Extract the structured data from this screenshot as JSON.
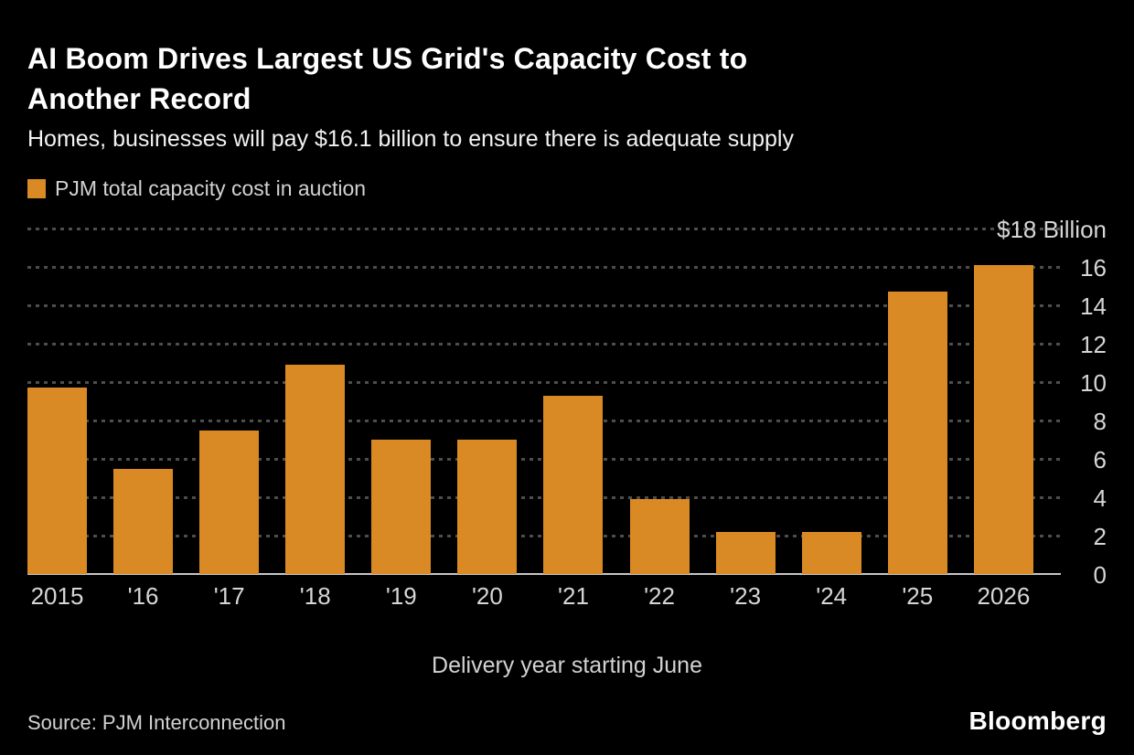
{
  "header": {
    "title_line1": "AI Boom Drives Largest US Grid's Capacity Cost to",
    "title_line2": "Another Record",
    "subtitle": "Homes, businesses will pay $16.1 billion to ensure there is adequate supply"
  },
  "legend": {
    "label": "PJM total capacity cost in auction",
    "swatch_color": "#D98A24"
  },
  "chart_data": {
    "type": "bar",
    "title": "AI Boom Drives Largest US Grid's Capacity Cost to Another Record",
    "subtitle": "Homes, businesses will pay $16.1 billion to ensure there is adequate supply",
    "legend": "PJM total capacity cost in auction",
    "legend_position": "top-left",
    "categories": [
      "2015",
      "'16",
      "'17",
      "'18",
      "'19",
      "'20",
      "'21",
      "'22",
      "'23",
      "'24",
      "'25",
      "2026"
    ],
    "values": [
      9.7,
      5.5,
      7.5,
      10.9,
      7.0,
      7.0,
      9.3,
      3.9,
      2.2,
      2.2,
      14.7,
      16.1
    ],
    "xlabel": "Delivery year starting June",
    "ylabel_unit": "$18 Billion",
    "ylim": [
      0,
      18
    ],
    "ytick_step": 2,
    "ytick_labels": [
      "16",
      "14",
      "12",
      "10",
      "8",
      "6",
      "4",
      "2",
      "0"
    ],
    "yaxis_position": "right",
    "grid": "horizontal-dotted",
    "bar_color": "#D98A24"
  },
  "footer": {
    "source": "Source: PJM Interconnection",
    "brand": "Bloomberg"
  },
  "colors": {
    "background": "#000000",
    "title_text": "#FFFFFF",
    "muted_text": "#D2D2D2",
    "gridline": "#4D4D4D",
    "baseline": "#C6C6C6",
    "bar": "#D98A24"
  }
}
